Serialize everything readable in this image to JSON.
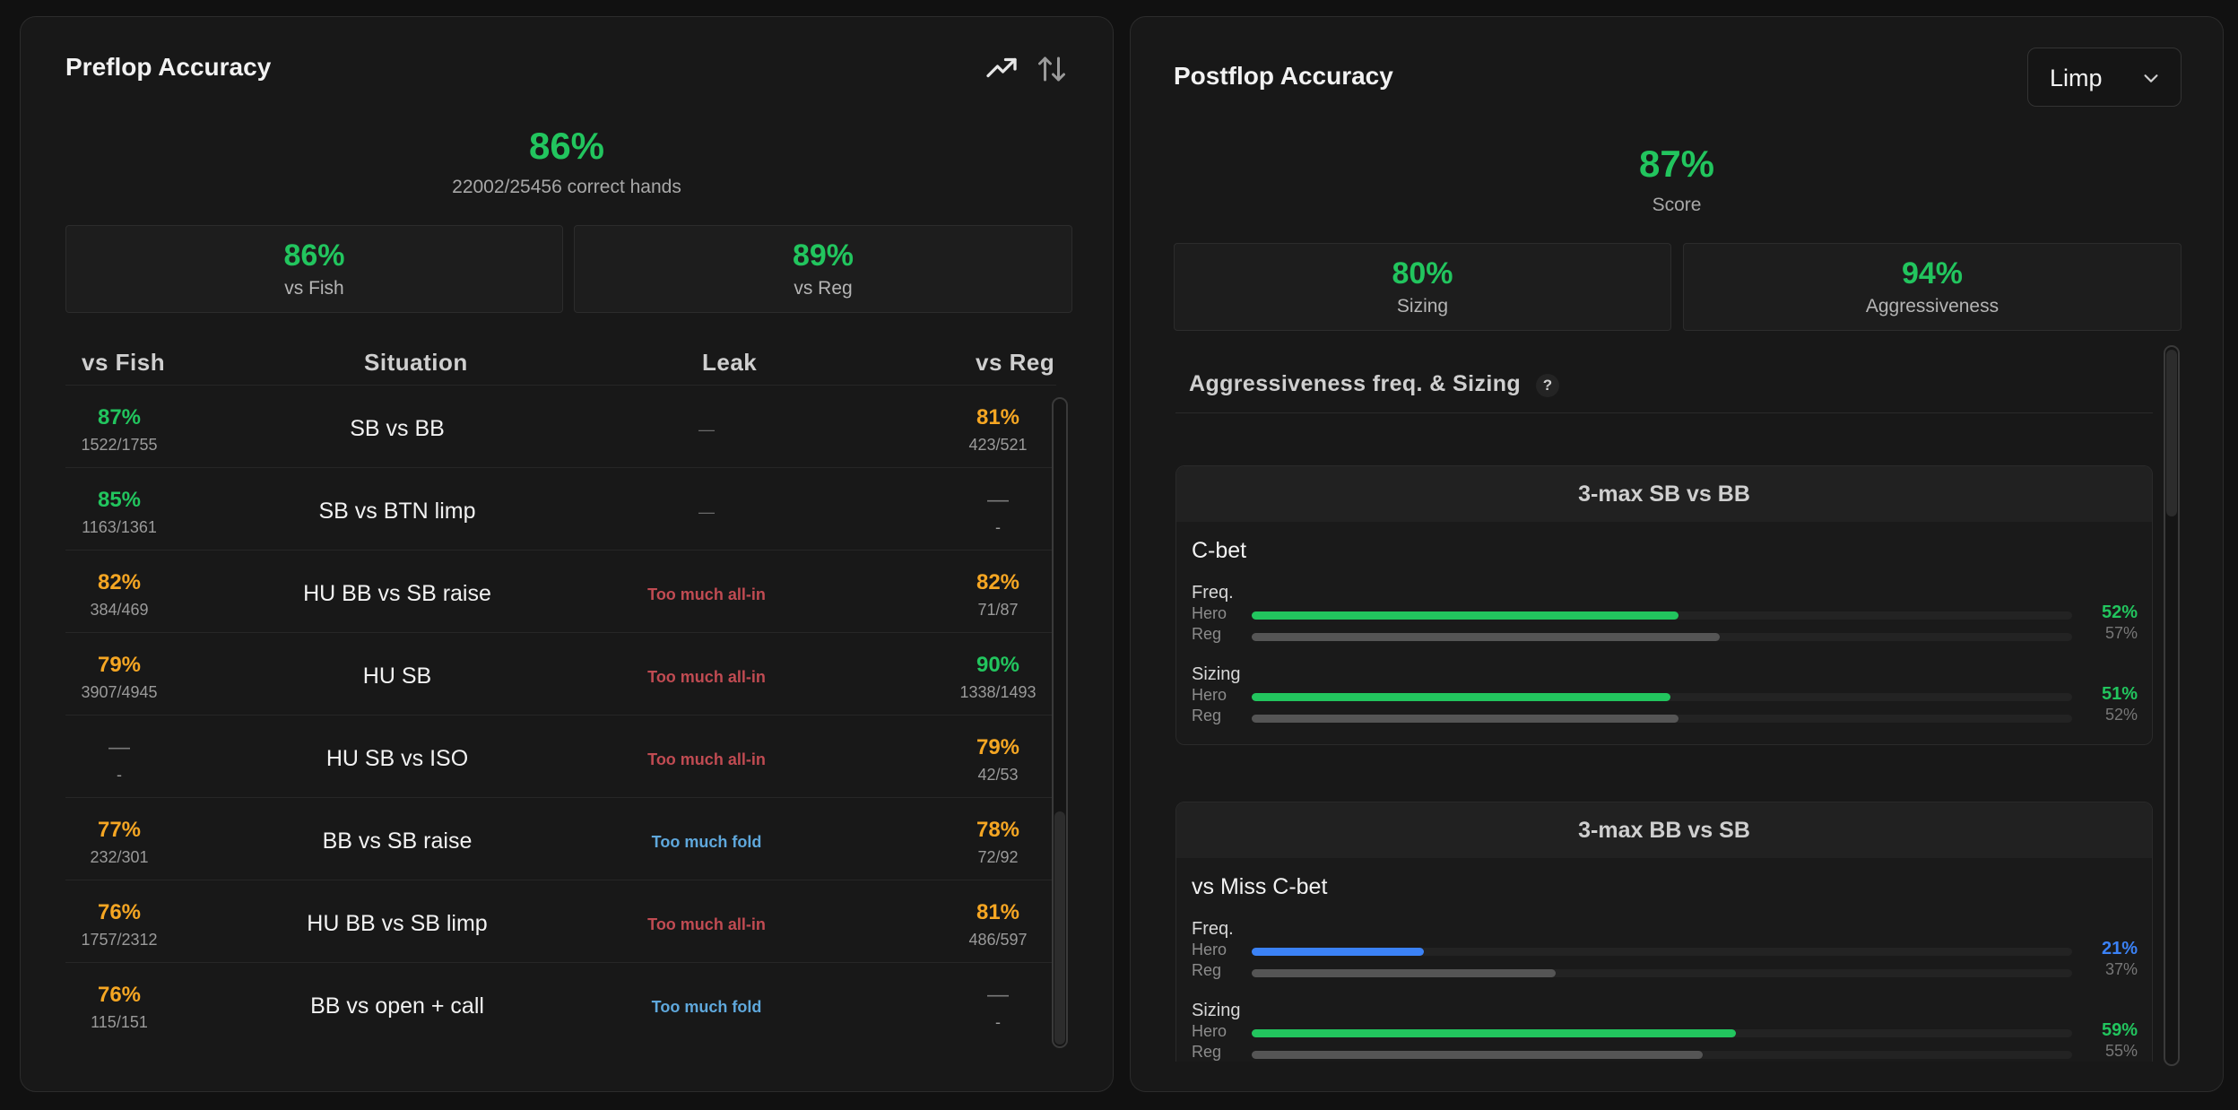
{
  "preflop": {
    "title": "Preflop Accuracy",
    "overall_pct": "86%",
    "overall_sub": "22002/25456 correct hands",
    "vs_fish_pct": "86%",
    "vs_fish_label": "vs Fish",
    "vs_reg_pct": "89%",
    "vs_reg_label": "vs Reg",
    "headers": {
      "fish": "vs Fish",
      "situation": "Situation",
      "leak": "Leak",
      "reg": "vs Reg"
    },
    "rows": [
      {
        "fish_pct": "87%",
        "fish_frac": "1522/1755",
        "situation": "SB vs BB",
        "leak": "—",
        "reg_pct": "81%",
        "reg_frac": "423/521"
      },
      {
        "fish_pct": "85%",
        "fish_frac": "1163/1361",
        "situation": "SB vs BTN limp",
        "leak": "—",
        "reg_pct": "—",
        "reg_frac": "-"
      },
      {
        "fish_pct": "82%",
        "fish_frac": "384/469",
        "situation": "HU BB vs SB raise",
        "leak": "Too much all-in",
        "reg_pct": "82%",
        "reg_frac": "71/87"
      },
      {
        "fish_pct": "79%",
        "fish_frac": "3907/4945",
        "situation": "HU SB",
        "leak": "Too much all-in",
        "reg_pct": "90%",
        "reg_frac": "1338/1493"
      },
      {
        "fish_pct": "—",
        "fish_frac": "-",
        "situation": "HU SB vs ISO",
        "leak": "Too much all-in",
        "reg_pct": "79%",
        "reg_frac": "42/53"
      },
      {
        "fish_pct": "77%",
        "fish_frac": "232/301",
        "situation": "BB vs SB raise",
        "leak": "Too much fold",
        "reg_pct": "78%",
        "reg_frac": "72/92"
      },
      {
        "fish_pct": "76%",
        "fish_frac": "1757/2312",
        "situation": "HU BB vs SB limp",
        "leak": "Too much all-in",
        "reg_pct": "81%",
        "reg_frac": "486/597"
      },
      {
        "fish_pct": "76%",
        "fish_frac": "115/151",
        "situation": "BB vs open + call",
        "leak": "Too much fold",
        "reg_pct": "—",
        "reg_frac": "-"
      }
    ]
  },
  "postflop": {
    "title": "Postflop Accuracy",
    "dropdown_value": "Limp",
    "score_pct": "87%",
    "score_label": "Score",
    "sizing_pct": "80%",
    "sizing_label": "Sizing",
    "aggr_pct": "94%",
    "aggr_label": "Aggressiveness",
    "section_title": "Aggressiveness freq. & Sizing",
    "help": "?",
    "cards": [
      {
        "title": "3-max SB vs BB",
        "subtitle": "C-bet",
        "metrics": [
          {
            "label": "Freq.",
            "hero": 52,
            "hero_text": "52%",
            "reg": 57,
            "reg_text": "57%"
          },
          {
            "label": "Sizing",
            "hero": 51,
            "hero_text": "51%",
            "reg": 52,
            "reg_text": "52%"
          }
        ]
      },
      {
        "title": "3-max BB vs SB",
        "subtitle": "vs Miss C-bet",
        "metrics": [
          {
            "label": "Freq.",
            "hero": 21,
            "hero_text": "21%",
            "reg": 37,
            "reg_text": "37%"
          },
          {
            "label": "Sizing",
            "hero": 59,
            "hero_text": "59%",
            "reg": 55,
            "reg_text": "55%"
          }
        ]
      }
    ],
    "hero_label": "Hero",
    "reg_label": "Reg"
  },
  "colors": {
    "green": "#22c55e",
    "orange": "#f5a623",
    "blue": "#3b82f6",
    "leak_red": "#c04b52",
    "leak_blue": "#5fa8dc",
    "reg_bar": "#555555"
  },
  "icons": [
    "trend-up-icon",
    "sort-arrows-icon",
    "chevron-down-icon",
    "help-icon"
  ]
}
